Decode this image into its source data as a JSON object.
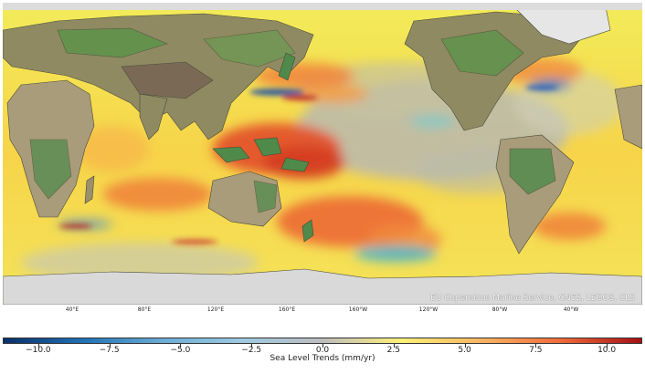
{
  "map": {
    "credit": "EU Copernicus Marine Service, CNES, LEGOS, CLS",
    "longitude_labels": [
      "40°E",
      "80°E",
      "120°E",
      "160°E",
      "160°W",
      "120°W",
      "80°W",
      "40°W"
    ]
  },
  "colorbar": {
    "label": "Sea Level Trends (mm/yr)",
    "ticks": [
      "−10.0",
      "−7.5",
      "−5.0",
      "−2.5",
      "0.0",
      "2.5",
      "5.0",
      "7.5",
      "10.0"
    ],
    "range": [
      -11.25,
      11.25
    ],
    "colors": [
      "#08306b",
      "#2171b5",
      "#6baed6",
      "#9ecae1",
      "#bdbdbd",
      "#fff176",
      "#fdb462",
      "#ef6a3a",
      "#a50f15"
    ]
  }
}
